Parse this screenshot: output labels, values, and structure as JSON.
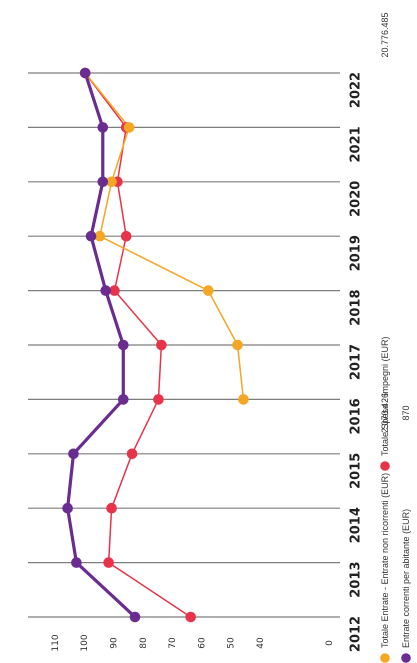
{
  "chart_data": {
    "type": "line",
    "orientation": "rotated-90-clockwise",
    "categories": [
      "2012",
      "2013",
      "2014",
      "2015",
      "2016",
      "2017",
      "2018",
      "2019",
      "2020",
      "2021",
      "2022"
    ],
    "y_ticks": [
      40,
      50,
      60,
      70,
      80,
      90,
      100,
      110
    ],
    "y_zero_label": "0",
    "ylim": [
      40,
      110
    ],
    "grid": "vertical lines at each year",
    "series": [
      {
        "name": "Totale Entrate - Entrate non ricorrenti (EUR)",
        "color": "#f5a623",
        "legend_value": "2.070.426",
        "values": [
          null,
          null,
          null,
          null,
          46,
          48,
          58,
          95,
          91,
          85,
          100
        ]
      },
      {
        "name": "Totale Spese - Impegni (EUR)",
        "color": "#e8334a",
        "legend_value": "20.776.485",
        "values": [
          64,
          92,
          91,
          84,
          75,
          74,
          90,
          86,
          89,
          86,
          100
        ]
      },
      {
        "name": "Entrate correnti per abitante (EUR)",
        "color": "#6a2c91",
        "legend_value": "870",
        "values": [
          83,
          103,
          106,
          104,
          87,
          87,
          93,
          98,
          94,
          94,
          100
        ]
      }
    ]
  }
}
